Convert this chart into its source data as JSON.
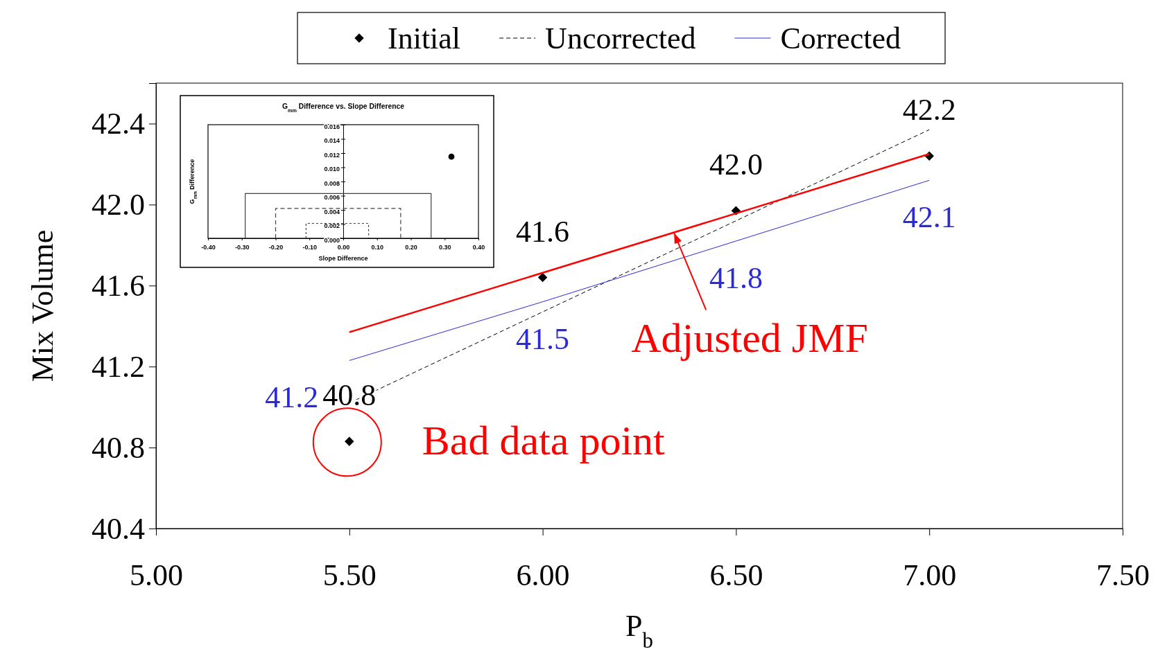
{
  "chart_data": [
    {
      "type": "line",
      "xlabel": "P$_{b}$",
      "ylabel": "Mix Volume",
      "xlim": [
        5,
        7.5
      ],
      "xticks": [
        {
          "value": 5,
          "label": "5.00"
        },
        {
          "value": 5.5,
          "label": "5.50"
        },
        {
          "value": 6,
          "label": "6.00"
        },
        {
          "value": 6.5,
          "label": "6.50"
        },
        {
          "value": 7,
          "label": "7.00"
        },
        {
          "value": 7.5,
          "label": "7.50"
        }
      ],
      "ylim": [
        40.4,
        42.6
      ],
      "yticks": [
        40.4,
        40.8,
        41.2,
        41.6,
        {
          "value": 42,
          "label": "42.0"
        },
        42.4
      ],
      "legend": "top",
      "series": [
        {
          "name": "Initial",
          "type": "scatter",
          "marker": "diamond",
          "color": "#000000",
          "x": [
            5.5,
            6,
            6.5,
            7
          ],
          "values": [
            40.83,
            41.64,
            41.97,
            42.24
          ],
          "value_labels": [
            "40.8",
            "41.6",
            "42.0",
            "42.2"
          ]
        },
        {
          "name": "Uncorrected",
          "line_style": "dashed",
          "color": "#000000",
          "x": [
            5.5,
            7
          ],
          "values": [
            41.02,
            42.37
          ]
        },
        {
          "name": "Corrected",
          "line_style": "solid",
          "color": "#2a2ad8",
          "x": [
            5.5,
            6,
            6.5,
            7
          ],
          "values": [
            41.23,
            41.52,
            41.82,
            42.12
          ],
          "value_labels": [
            "41.2",
            "41.5",
            "41.8",
            "42.1"
          ]
        },
        {
          "line_style": "solid",
          "color": "#ff0000",
          "x": [
            5.5,
            7
          ],
          "values": [
            41.37,
            42.25
          ]
        }
      ],
      "annotations": [
        {
          "text": "Adjusted JMF",
          "x": 6.34,
          "y": 41.86
        },
        {
          "text": "Bad data point",
          "x": 5.5,
          "y": 40.83
        }
      ]
    },
    {
      "type": "scatter",
      "title": "G$_{mm}$ Difference vs. Slope Difference",
      "xlabel": "Slope Difference",
      "ylabel": "G$_{mm}$ Difference",
      "xlim": [
        -0.4,
        0.4
      ],
      "xticks": [
        {
          "value": -0.4,
          "label": "-0.40"
        },
        {
          "value": -0.3,
          "label": "-0.30"
        },
        {
          "value": -0.2,
          "label": "-0.20"
        },
        {
          "value": -0.1,
          "label": "-0.10"
        },
        {
          "value": 0,
          "label": "0.00"
        },
        {
          "value": 0.1,
          "label": "0.10"
        },
        {
          "value": 0.2,
          "label": "0.20"
        },
        {
          "value": 0.3,
          "label": "0.30"
        },
        {
          "value": 0.4,
          "label": "0.40"
        }
      ],
      "ylim": [
        0,
        0.016
      ],
      "yticks": [
        {
          "value": 0,
          "label": "0.000"
        },
        {
          "value": 0.002,
          "label": "0.002"
        },
        {
          "value": 0.004,
          "label": "0.004"
        },
        {
          "value": 0.006,
          "label": "0.006"
        },
        {
          "value": 0.008,
          "label": "0.008"
        },
        {
          "value": 0.01,
          "label": "0.010"
        },
        {
          "value": 0.012,
          "label": "0.012"
        },
        {
          "value": 0.014,
          "label": "0.014"
        },
        {
          "value": 0.016,
          "label": "0.016"
        }
      ],
      "series": [
        {
          "marker": "circle",
          "color": "#000000",
          "x": [
            0.32
          ],
          "values": [
            0.0115
          ]
        },
        {
          "type": "line",
          "line_style": "solid",
          "color": "#404040",
          "x": [
            -0.29,
            -0.29,
            0.26,
            0.26
          ],
          "values": [
            0,
            0.0063,
            0.0063,
            0
          ]
        },
        {
          "type": "line",
          "line_style": "dashed",
          "color": "#404040",
          "x": [
            -0.2,
            -0.2,
            0.17,
            0.17
          ],
          "values": [
            0,
            0.0042,
            0.0042,
            0
          ]
        },
        {
          "type": "line",
          "line_style": "dotted",
          "color": "#404040",
          "x": [
            -0.11,
            -0.11,
            0.075,
            0.075
          ],
          "values": [
            0,
            0.0021,
            0.0021,
            0
          ]
        }
      ]
    }
  ]
}
